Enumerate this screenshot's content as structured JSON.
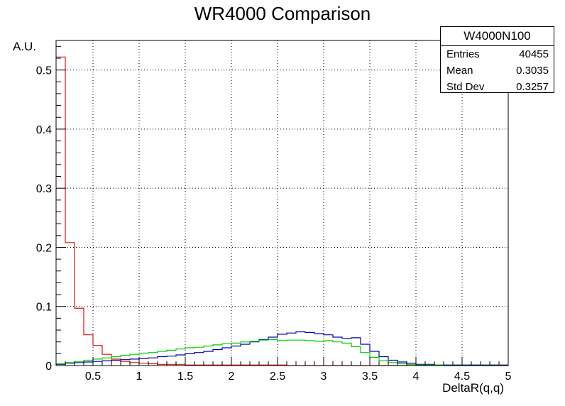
{
  "chart_data": {
    "type": "histogram",
    "title": "WR4000 Comparison",
    "xlabel": "DeltaR(q,q)",
    "ylabel": "A.U.",
    "xlim": [
      0.1,
      5.0
    ],
    "ylim": [
      0,
      0.55
    ],
    "xticks": [
      "0.5",
      "1",
      "1.5",
      "2",
      "2.5",
      "3",
      "3.5",
      "4",
      "4.5",
      "5"
    ],
    "yticks": [
      "0",
      "0.1",
      "0.2",
      "0.3",
      "0.4",
      "0.5"
    ],
    "grid": true,
    "bin_edges": [
      0.1,
      0.2,
      0.3,
      0.4,
      0.5,
      0.6,
      0.7,
      0.8,
      0.9,
      1.0,
      1.1,
      1.2,
      1.3,
      1.4,
      1.5,
      1.6,
      1.7,
      1.8,
      1.9,
      2.0,
      2.1,
      2.2,
      2.3,
      2.4,
      2.5,
      2.6,
      2.7,
      2.8,
      2.9,
      3.0,
      3.1,
      3.2,
      3.3,
      3.4,
      3.5,
      3.6,
      3.7,
      3.8,
      3.9,
      4.0,
      4.1,
      4.2,
      4.3,
      4.4,
      4.5,
      4.6,
      4.7,
      4.8,
      4.9,
      5.0
    ],
    "series": [
      {
        "color": "#e01010",
        "values": [
          0.522,
          0.208,
          0.097,
          0.052,
          0.034,
          0.019,
          0.011,
          0.007,
          0.005,
          0.004,
          0.003,
          0.002,
          0.002,
          0.002,
          0.001,
          0.001,
          0.001,
          0.001,
          0.001,
          0.001,
          0.001,
          0.001,
          0.001,
          0.001,
          0.001,
          0.0,
          0.0,
          0.0,
          0.0,
          0.0,
          0.0,
          0.0,
          0.0,
          0.0,
          0.0,
          0.0,
          0.0,
          0.0,
          0.0,
          0.0,
          0.0,
          0.0,
          0.0,
          0.0,
          0.0,
          0.0,
          0.0,
          0.0,
          0.0
        ]
      },
      {
        "color": "#0000b0",
        "values": [
          0.002,
          0.004,
          0.005,
          0.006,
          0.007,
          0.008,
          0.009,
          0.01,
          0.011,
          0.012,
          0.013,
          0.015,
          0.016,
          0.018,
          0.02,
          0.022,
          0.024,
          0.027,
          0.03,
          0.033,
          0.036,
          0.04,
          0.044,
          0.048,
          0.053,
          0.055,
          0.057,
          0.056,
          0.054,
          0.052,
          0.048,
          0.046,
          0.047,
          0.036,
          0.024,
          0.015,
          0.009,
          0.006,
          0.004,
          0.002,
          0.002,
          0.001,
          0.001,
          0.001,
          0.001,
          0.001,
          0.001,
          0.001,
          0.001
        ]
      },
      {
        "color": "#00cc00",
        "values": [
          0.003,
          0.005,
          0.007,
          0.009,
          0.011,
          0.013,
          0.015,
          0.017,
          0.019,
          0.021,
          0.022,
          0.024,
          0.026,
          0.028,
          0.03,
          0.031,
          0.033,
          0.035,
          0.037,
          0.038,
          0.04,
          0.041,
          0.043,
          0.044,
          0.042,
          0.043,
          0.043,
          0.042,
          0.041,
          0.042,
          0.04,
          0.038,
          0.032,
          0.022,
          0.014,
          0.008,
          0.005,
          0.003,
          0.002,
          0.001,
          0.001,
          0.001,
          0.0,
          0.0,
          0.0,
          0.0,
          0.0,
          0.0,
          0.0
        ]
      }
    ],
    "stats_box": {
      "title": "W4000N100",
      "rows": [
        {
          "label": "Entries",
          "value": "40455"
        },
        {
          "label": "Mean",
          "value": "0.3035"
        },
        {
          "label": "Std Dev",
          "value": "0.3257"
        }
      ]
    }
  }
}
